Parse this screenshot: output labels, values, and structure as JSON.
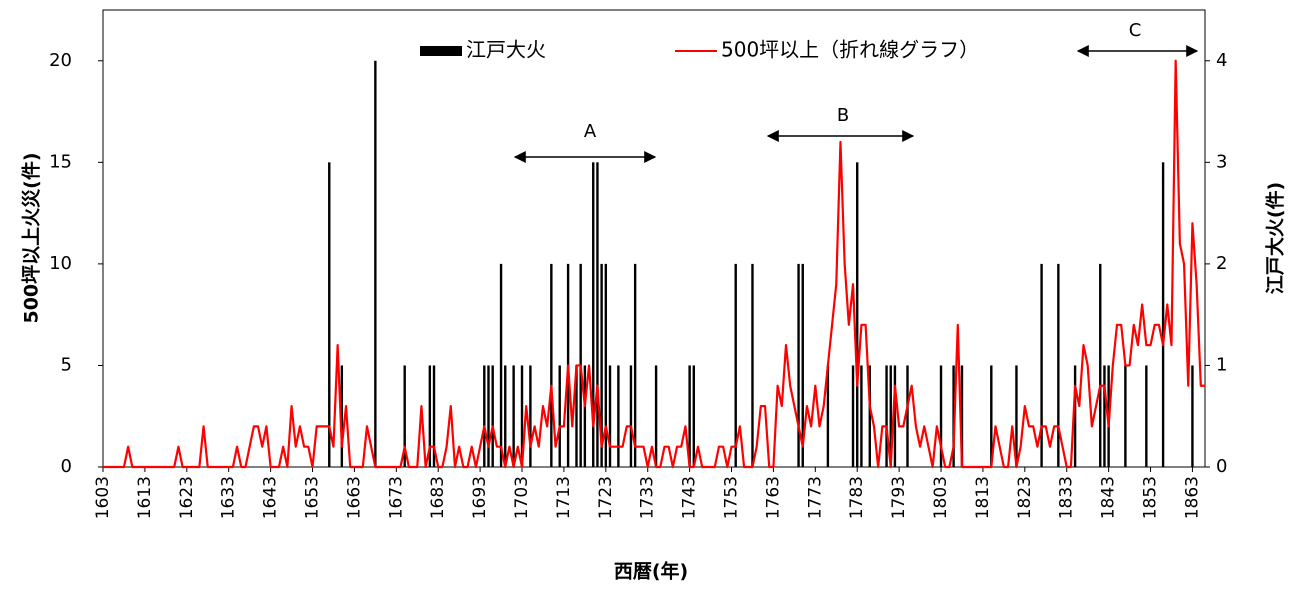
{
  "chart_data": {
    "type": "combo",
    "xlabel": "西暦(年)",
    "ylabel": "500坪以上火災(件)",
    "y2label": "江戸大火(件)",
    "xlim": [
      1603,
      1866
    ],
    "xticks": [
      1603,
      1613,
      1623,
      1633,
      1643,
      1653,
      1663,
      1673,
      1683,
      1693,
      1703,
      1713,
      1723,
      1733,
      1743,
      1753,
      1763,
      1773,
      1783,
      1793,
      1803,
      1813,
      1823,
      1833,
      1843,
      1853,
      1863
    ],
    "ylim": [
      0,
      22.5
    ],
    "yticks": [
      0,
      5,
      10,
      15,
      20
    ],
    "y2lim": [
      0,
      4.5
    ],
    "y2ticks": [
      0,
      1,
      2,
      3,
      4
    ],
    "annotations": [
      "A",
      "B",
      "C"
    ],
    "series": [
      {
        "name": "江戸大火",
        "type": "bar",
        "axis": "y2",
        "color": "#000000",
        "x": [
          1657,
          1660,
          1668,
          1675,
          1681,
          1682,
          1694,
          1695,
          1696,
          1698,
          1699,
          1701,
          1703,
          1705,
          1710,
          1712,
          1714,
          1716,
          1717,
          1718,
          1720,
          1721,
          1722,
          1723,
          1724,
          1726,
          1729,
          1730,
          1735,
          1743,
          1744,
          1754,
          1758,
          1769,
          1770,
          1776,
          1782,
          1783,
          1784,
          1786,
          1790,
          1791,
          1792,
          1795,
          1803,
          1806,
          1808,
          1815,
          1821,
          1827,
          1831,
          1835,
          1841,
          1842,
          1843,
          1847,
          1852,
          1856,
          1863
        ],
        "values": [
          3,
          1,
          4,
          1,
          1,
          1,
          1,
          1,
          1,
          2,
          1,
          1,
          1,
          1,
          2,
          1,
          2,
          1,
          2,
          1,
          3,
          3,
          2,
          2,
          1,
          1,
          1,
          2,
          1,
          1,
          1,
          2,
          2,
          2,
          2,
          1,
          1,
          3,
          1,
          1,
          1,
          1,
          1,
          1,
          1,
          1,
          1,
          1,
          1,
          2,
          2,
          1,
          2,
          1,
          1,
          1,
          1,
          3,
          1
        ]
      },
      {
        "name": "500坪以上（折れ線グラフ）",
        "type": "line",
        "color": "#ff0000",
        "x": [
          1603,
          1604,
          1605,
          1606,
          1607,
          1608,
          1609,
          1610,
          1611,
          1612,
          1613,
          1614,
          1615,
          1616,
          1617,
          1618,
          1619,
          1620,
          1621,
          1622,
          1623,
          1624,
          1625,
          1626,
          1627,
          1628,
          1629,
          1630,
          1631,
          1632,
          1633,
          1634,
          1635,
          1636,
          1637,
          1638,
          1639,
          1640,
          1641,
          1642,
          1643,
          1644,
          1645,
          1646,
          1647,
          1648,
          1649,
          1650,
          1651,
          1652,
          1653,
          1654,
          1655,
          1656,
          1657,
          1658,
          1659,
          1660,
          1661,
          1662,
          1663,
          1664,
          1665,
          1666,
          1667,
          1668,
          1669,
          1670,
          1671,
          1672,
          1673,
          1674,
          1675,
          1676,
          1677,
          1678,
          1679,
          1680,
          1681,
          1682,
          1683,
          1684,
          1685,
          1686,
          1687,
          1688,
          1689,
          1690,
          1691,
          1692,
          1693,
          1694,
          1695,
          1696,
          1697,
          1698,
          1699,
          1700,
          1701,
          1702,
          1703,
          1704,
          1705,
          1706,
          1707,
          1708,
          1709,
          1710,
          1711,
          1712,
          1713,
          1714,
          1715,
          1716,
          1717,
          1718,
          1719,
          1720,
          1721,
          1722,
          1723,
          1724,
          1725,
          1726,
          1727,
          1728,
          1729,
          1730,
          1731,
          1732,
          1733,
          1734,
          1735,
          1736,
          1737,
          1738,
          1739,
          1740,
          1741,
          1742,
          1743,
          1744,
          1745,
          1746,
          1747,
          1748,
          1749,
          1750,
          1751,
          1752,
          1753,
          1754,
          1755,
          1756,
          1757,
          1758,
          1759,
          1760,
          1761,
          1762,
          1763,
          1764,
          1765,
          1766,
          1767,
          1768,
          1769,
          1770,
          1771,
          1772,
          1773,
          1774,
          1775,
          1776,
          1777,
          1778,
          1779,
          1780,
          1781,
          1782,
          1783,
          1784,
          1785,
          1786,
          1787,
          1788,
          1789,
          1790,
          1791,
          1792,
          1793,
          1794,
          1795,
          1796,
          1797,
          1798,
          1799,
          1800,
          1801,
          1802,
          1803,
          1804,
          1805,
          1806,
          1807,
          1808,
          1809,
          1810,
          1811,
          1812,
          1813,
          1814,
          1815,
          1816,
          1817,
          1818,
          1819,
          1820,
          1821,
          1822,
          1823,
          1824,
          1825,
          1826,
          1827,
          1828,
          1829,
          1830,
          1831,
          1832,
          1833,
          1834,
          1835,
          1836,
          1837,
          1838,
          1839,
          1840,
          1841,
          1842,
          1843,
          1844,
          1845,
          1846,
          1847,
          1848,
          1849,
          1850,
          1851,
          1852,
          1853,
          1854,
          1855,
          1856,
          1857,
          1858,
          1859,
          1860,
          1861,
          1862,
          1863,
          1864,
          1865,
          1866
        ],
        "values": [
          0,
          0,
          0,
          0,
          0,
          0,
          1,
          0,
          0,
          0,
          0,
          0,
          0,
          0,
          0,
          0,
          0,
          0,
          1,
          0,
          0,
          0,
          0,
          0,
          2,
          0,
          0,
          0,
          0,
          0,
          0,
          0,
          1,
          0,
          0,
          1,
          2,
          2,
          1,
          2,
          0,
          0,
          0,
          1,
          0,
          3,
          1,
          2,
          1,
          1,
          0,
          2,
          2,
          2,
          2,
          1,
          6,
          1,
          3,
          0,
          0,
          0,
          0,
          2,
          1,
          0,
          0,
          0,
          0,
          0,
          0,
          0,
          1,
          0,
          0,
          0,
          3,
          0,
          1,
          1,
          0,
          0,
          1,
          3,
          0,
          1,
          0,
          0,
          1,
          0,
          1,
          2,
          1,
          2,
          1,
          1,
          0,
          1,
          0,
          1,
          0,
          3,
          1,
          2,
          1,
          3,
          2,
          4,
          1,
          2,
          2,
          5,
          2,
          5,
          5,
          3,
          5,
          2,
          4,
          1,
          2,
          1,
          1,
          1,
          1,
          2,
          2,
          1,
          1,
          1,
          0,
          1,
          0,
          0,
          1,
          1,
          0,
          1,
          1,
          2,
          0,
          0,
          1,
          0,
          0,
          0,
          0,
          1,
          1,
          0,
          1,
          1,
          2,
          0,
          0,
          0,
          1,
          3,
          3,
          0,
          0,
          4,
          3,
          6,
          4,
          3,
          2,
          1,
          3,
          2,
          4,
          2,
          3,
          5,
          7,
          9,
          16,
          10,
          7,
          9,
          4,
          7,
          7,
          3,
          2,
          0,
          2,
          2,
          0,
          4,
          2,
          2,
          3,
          4,
          2,
          1,
          2,
          1,
          0,
          2,
          1,
          0,
          0,
          1,
          7,
          0,
          0,
          0,
          0,
          0,
          0,
          0,
          0,
          2,
          1,
          0,
          0,
          2,
          0,
          1,
          3,
          2,
          2,
          1,
          2,
          2,
          1,
          2,
          2,
          1,
          0,
          0,
          4,
          3,
          6,
          5,
          2,
          3,
          4,
          4,
          2,
          5,
          7,
          7,
          5,
          5,
          7,
          6,
          8,
          6,
          6,
          7,
          7,
          6,
          8,
          6,
          20,
          11,
          10,
          4,
          12,
          9,
          4,
          4
        ]
      }
    ]
  }
}
